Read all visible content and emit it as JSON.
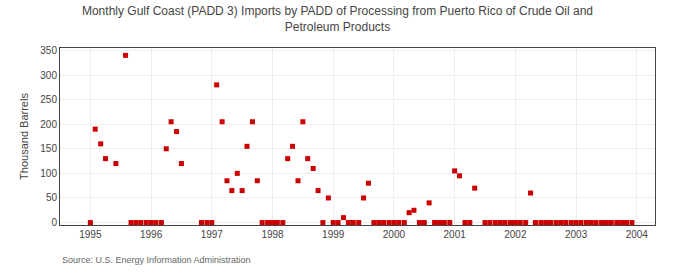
{
  "chart_data": {
    "type": "scatter",
    "title": "Monthly Gulf Coast (PADD 3) Imports by PADD of Processing from Puerto Rico of Crude Oil and\nPetroleum Products",
    "ylabel": "Thousand Barrels",
    "source": "Source: U.S. Energy Information Administration",
    "color": "#cc0000",
    "marker": "square",
    "grid": true,
    "xlim": [
      1994.5,
      2004.3
    ],
    "ylim": [
      -5,
      355
    ],
    "xticks": [
      1995,
      1996,
      1997,
      1998,
      1999,
      2000,
      2001,
      2002,
      2003,
      2004
    ],
    "yticks": [
      0,
      50,
      100,
      150,
      200,
      250,
      300,
      350
    ],
    "x": [
      1995.0,
      1995.08,
      1995.17,
      1995.25,
      1995.42,
      1995.58,
      1995.67,
      1995.75,
      1995.83,
      1995.92,
      1996.0,
      1996.08,
      1996.17,
      1996.25,
      1996.33,
      1996.42,
      1996.5,
      1996.83,
      1996.92,
      1997.0,
      1997.08,
      1997.17,
      1997.25,
      1997.33,
      1997.42,
      1997.5,
      1997.58,
      1997.67,
      1997.75,
      1997.83,
      1997.92,
      1998.0,
      1998.08,
      1998.17,
      1998.25,
      1998.33,
      1998.42,
      1998.5,
      1998.58,
      1998.67,
      1998.75,
      1998.83,
      1998.92,
      1999.0,
      1999.08,
      1999.17,
      1999.25,
      1999.33,
      1999.42,
      1999.5,
      1999.58,
      1999.67,
      1999.75,
      1999.83,
      1999.92,
      2000.0,
      2000.08,
      2000.17,
      2000.25,
      2000.33,
      2000.42,
      2000.5,
      2000.58,
      2000.67,
      2000.75,
      2000.83,
      2000.92,
      2001.0,
      2001.08,
      2001.17,
      2001.25,
      2001.33,
      2001.5,
      2001.58,
      2001.67,
      2001.75,
      2001.83,
      2001.92,
      2002.0,
      2002.08,
      2002.17,
      2002.25,
      2002.33,
      2002.42,
      2002.5,
      2002.58,
      2002.67,
      2002.75,
      2002.83,
      2002.92,
      2003.0,
      2003.08,
      2003.17,
      2003.25,
      2003.33,
      2003.42,
      2003.5,
      2003.58,
      2003.67,
      2003.75,
      2003.83,
      2003.92
    ],
    "values": [
      0,
      190,
      160,
      130,
      120,
      340,
      0,
      0,
      0,
      0,
      0,
      0,
      0,
      150,
      205,
      185,
      120,
      0,
      0,
      0,
      280,
      205,
      85,
      65,
      100,
      65,
      155,
      205,
      85,
      0,
      0,
      0,
      0,
      0,
      130,
      155,
      85,
      205,
      130,
      110,
      65,
      0,
      50,
      0,
      0,
      10,
      0,
      0,
      0,
      50,
      80,
      0,
      0,
      0,
      0,
      0,
      0,
      0,
      20,
      25,
      0,
      0,
      40,
      0,
      0,
      0,
      0,
      105,
      95,
      0,
      0,
      70,
      0,
      0,
      0,
      0,
      0,
      0,
      0,
      0,
      0,
      60,
      0,
      0,
      0,
      0,
      0,
      0,
      0,
      0,
      0,
      0,
      0,
      0,
      0,
      0,
      0,
      0,
      0,
      0,
      0,
      0
    ]
  }
}
